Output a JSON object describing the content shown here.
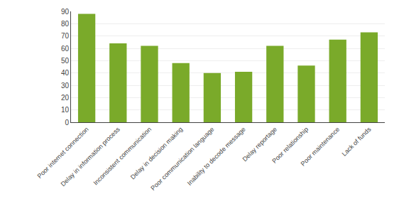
{
  "chart_data": {
    "type": "bar",
    "categories": [
      "Poor internet connection",
      "Delay in information process",
      "Inconsistent communication",
      "Delay in decision making",
      "Poor communication language",
      "Inability to decode message",
      "Delay reportage",
      "Poor relationship",
      "Poor maintenance",
      "Lack of funds"
    ],
    "values": [
      88,
      64,
      62,
      48,
      40,
      41,
      62,
      46,
      67,
      73
    ],
    "color": "#7aaa2a",
    "ylim": [
      0,
      90
    ],
    "yticks": [
      0,
      10,
      20,
      30,
      40,
      50,
      60,
      70,
      80,
      90
    ],
    "grid": true
  }
}
